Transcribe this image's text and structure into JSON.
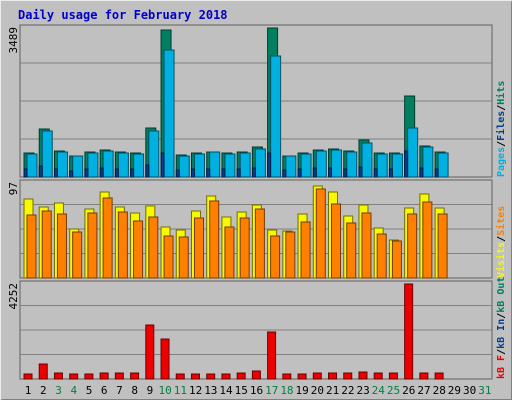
{
  "chart_data": {
    "type": "bar",
    "title": "Daily usage for February 2018",
    "colors": {
      "background": "#c0c0c0",
      "frame": "#ececec",
      "title": "#0000cc",
      "grid": "#808080",
      "hits": "#008060",
      "files": "#00b0e0",
      "pages": "#004090",
      "visits": "#f8f800",
      "sites": "#ff8000",
      "kbf": "#ee0000",
      "day_weekday": "#000000",
      "day_weekend": "#008040"
    },
    "days": [
      "1",
      "2",
      "3",
      "4",
      "5",
      "6",
      "7",
      "8",
      "9",
      "10",
      "11",
      "12",
      "13",
      "14",
      "15",
      "16",
      "17",
      "18",
      "19",
      "20",
      "21",
      "22",
      "23",
      "24",
      "25",
      "26",
      "27",
      "28",
      "29",
      "30",
      "31"
    ],
    "weekend_days": [
      "3",
      "4",
      "10",
      "11",
      "17",
      "18",
      "24",
      "25",
      "31"
    ],
    "panels": [
      {
        "id": "hits",
        "ymax_label": "3489",
        "ymax": 3489,
        "legend": [
          {
            "text": "Pages",
            "color": "#00b0e0"
          },
          {
            "text": "/",
            "color": "#000000"
          },
          {
            "text": "Files",
            "color": "#004090"
          },
          {
            "text": "/",
            "color": "#000000"
          },
          {
            "text": "Hits",
            "color": "#008060"
          }
        ],
        "series": [
          {
            "name": "Hits",
            "color": "#008060",
            "values": [
              560,
              1120,
              600,
              500,
              580,
              620,
              590,
              560,
              1130,
              3430,
              520,
              550,
              580,
              560,
              570,
              690,
              3460,
              500,
              550,
              620,
              640,
              600,
              850,
              560,
              560,
              1880,
              730,
              590,
              null,
              null,
              null
            ]
          },
          {
            "name": "Files",
            "color": "#00b0e0",
            "values": [
              540,
              1070,
              580,
              480,
              560,
              600,
              560,
              540,
              1070,
              2960,
              500,
              530,
              570,
              540,
              550,
              640,
              2820,
              480,
              530,
              600,
              620,
              580,
              790,
              540,
              540,
              1130,
              690,
              560,
              null,
              null,
              null
            ]
          },
          {
            "name": "Pages",
            "color": "#004090",
            "values": [
              180,
              260,
              190,
              150,
              180,
              200,
              190,
              180,
              290,
              560,
              170,
              180,
              190,
              180,
              180,
              210,
              560,
              160,
              180,
              200,
              200,
              190,
              240,
              180,
              180,
              600,
              220,
              190,
              null,
              null,
              null
            ]
          }
        ]
      },
      {
        "id": "visits",
        "ymax_label": "97",
        "ymax": 97,
        "legend": [
          {
            "text": "Visits",
            "color": "#f8f800"
          },
          {
            "text": "/",
            "color": "#000000"
          },
          {
            "text": "Sites",
            "color": "#ff8000"
          }
        ],
        "series": [
          {
            "name": "Visits",
            "color": "#f8f800",
            "values": [
              80,
              72,
              76,
              50,
              70,
              87,
              72,
              66,
              73,
              52,
              49,
              68,
              83,
              62,
              67,
              74,
              48,
              47,
              65,
              93,
              87,
              63,
              74,
              51,
              38,
              71,
              85,
              71,
              null,
              null,
              null
            ]
          },
          {
            "name": "Sites",
            "color": "#ff8000",
            "values": [
              64,
              68,
              65,
              46,
              66,
              81,
              67,
              58,
              62,
              42,
              41,
              61,
              78,
              52,
              61,
              70,
              42,
              46,
              57,
              90,
              75,
              56,
              66,
              44,
              37,
              65,
              77,
              65,
              null,
              null,
              null
            ]
          }
        ]
      },
      {
        "id": "kbytes",
        "ymax_label": "4252",
        "ymax": 4252,
        "legend": [
          {
            "text": "kB F",
            "color": "#ee0000"
          },
          {
            "text": "/",
            "color": "#000000"
          },
          {
            "text": "kB In",
            "color": "#004090"
          },
          {
            "text": "/",
            "color": "#000000"
          },
          {
            "text": "kB Out",
            "color": "#008060"
          }
        ],
        "series": [
          {
            "name": "kB F",
            "color": "#ee0000",
            "values": [
              240,
              670,
              260,
              230,
              230,
              270,
              270,
              260,
              2380,
              1780,
              220,
              230,
              220,
              220,
              250,
              360,
              2080,
              210,
              220,
              270,
              270,
              280,
              310,
              250,
              280,
              4200,
              270,
              280,
              null,
              null,
              null
            ]
          }
        ]
      }
    ]
  }
}
